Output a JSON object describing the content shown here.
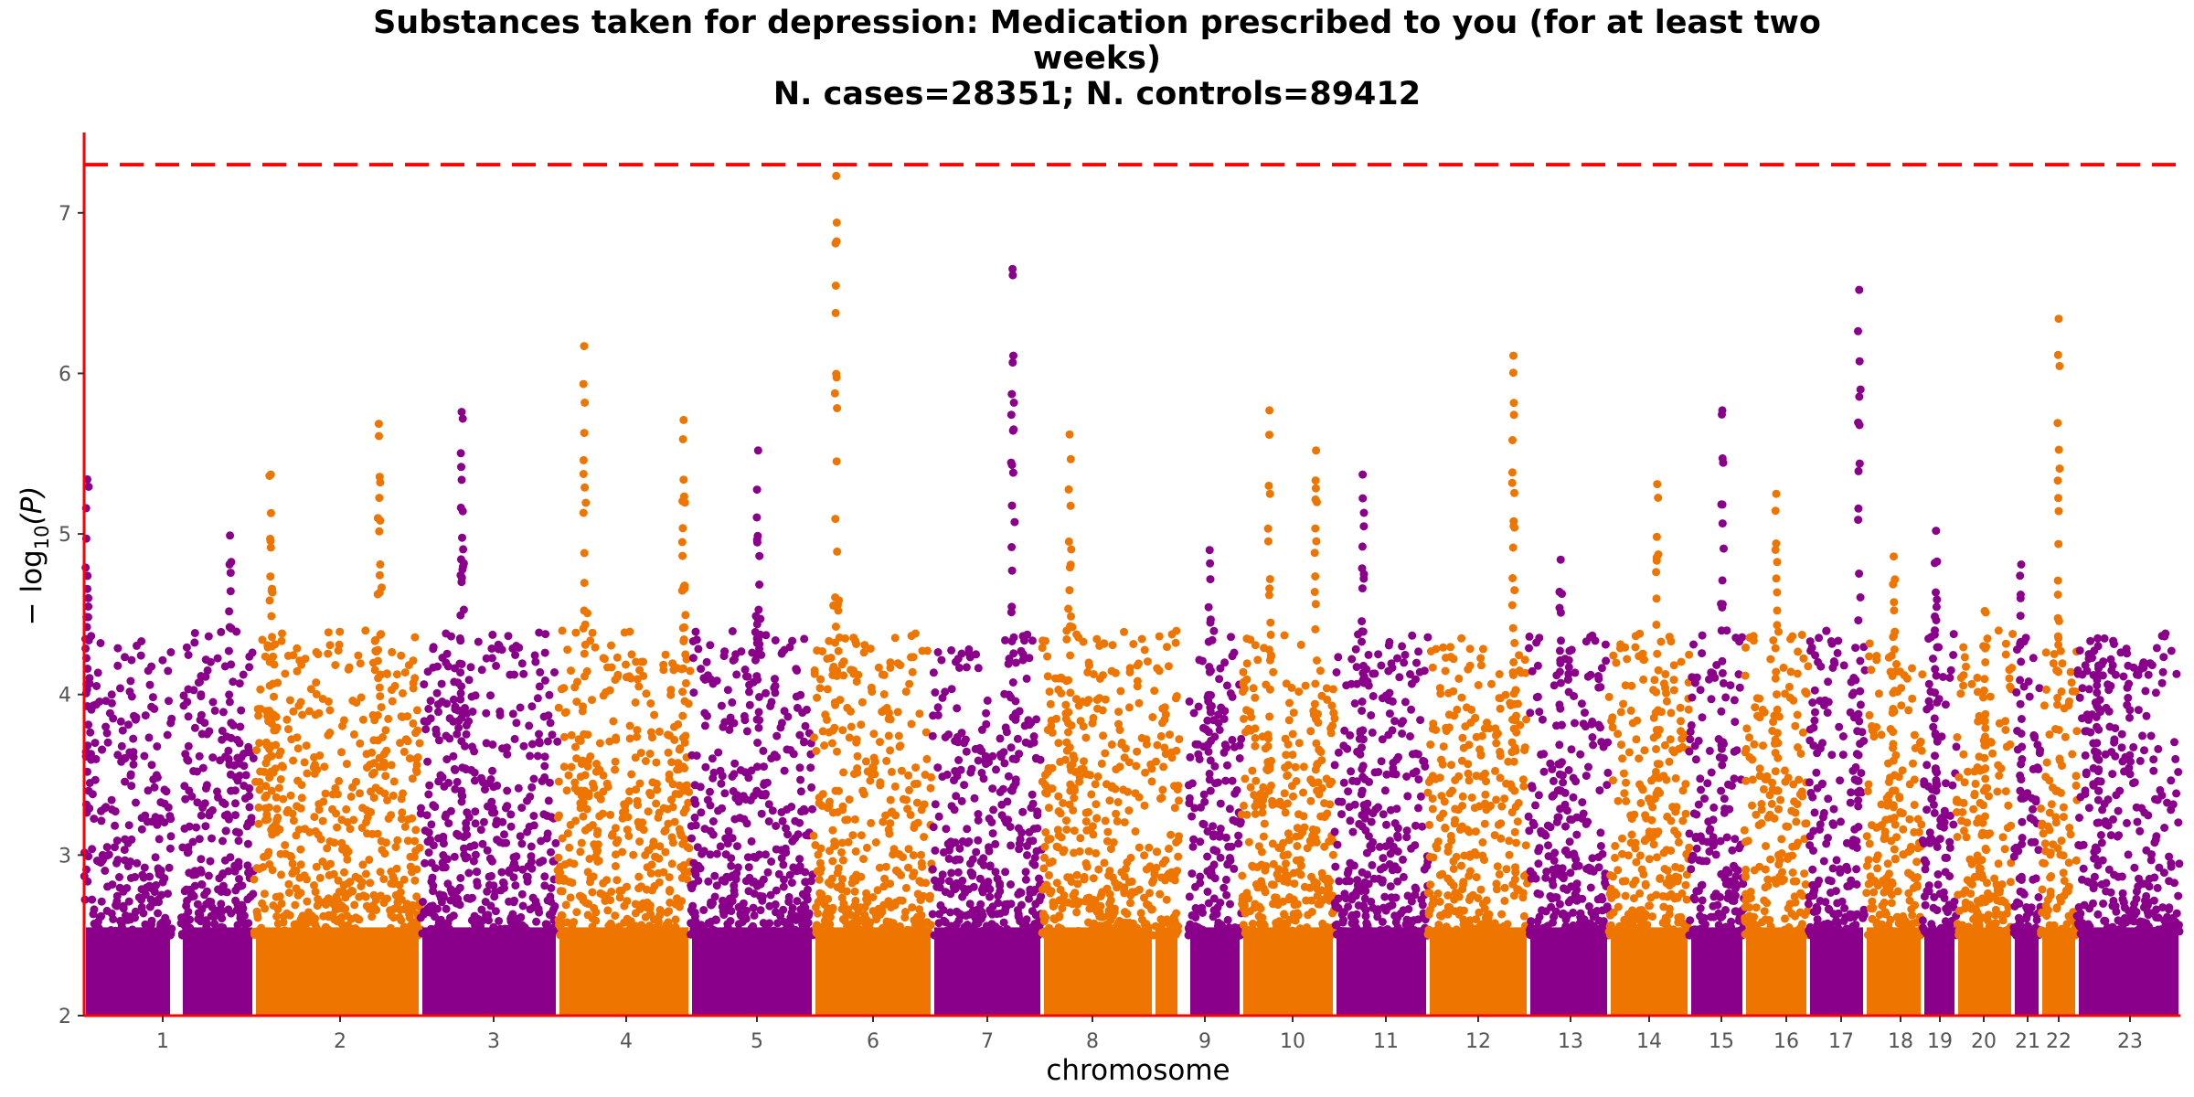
{
  "chart_data": {
    "type": "scatter",
    "subtype": "manhattan",
    "title_line1": "Substances taken for depression: Medication prescribed to you (for at least two",
    "title_line2": "weeks)",
    "title_line3": "N. cases=28351; N. controls=89412",
    "xlabel": "chromosome",
    "ylabel_main": "− log",
    "ylabel_sub": "10",
    "ylabel_tail": "(P)",
    "ylim": [
      2,
      7.5
    ],
    "y_ticks": [
      "2",
      "3",
      "4",
      "5",
      "6",
      "7"
    ],
    "significance_threshold": 7.3,
    "threshold_color": "#ff0000",
    "axis_color": "#ff0000",
    "colors": [
      "#8b008b",
      "#ee7600"
    ],
    "chromosomes": [
      {
        "label": "1",
        "color": "#8b008b",
        "peaks": [
          {
            "pos": 0.02,
            "y": 5.34
          },
          {
            "pos": 0.85,
            "y": 4.99
          }
        ]
      },
      {
        "label": "2",
        "color": "#ee7600",
        "peaks": [
          {
            "pos": 0.1,
            "y": 5.37
          },
          {
            "pos": 0.75,
            "y": 5.61
          }
        ]
      },
      {
        "label": "3",
        "color": "#8b008b",
        "peaks": [
          {
            "pos": 0.3,
            "y": 5.76
          }
        ]
      },
      {
        "label": "4",
        "color": "#ee7600",
        "peaks": [
          {
            "pos": 0.2,
            "y": 6.17
          },
          {
            "pos": 0.95,
            "y": 5.71
          }
        ]
      },
      {
        "label": "5",
        "color": "#8b008b",
        "peaks": [
          {
            "pos": 0.55,
            "y": 5.52
          }
        ]
      },
      {
        "label": "6",
        "color": "#ee7600",
        "peaks": [
          {
            "pos": 0.19,
            "y": 7.23
          }
        ]
      },
      {
        "label": "7",
        "color": "#8b008b",
        "peaks": [
          {
            "pos": 0.73,
            "y": 6.65
          }
        ]
      },
      {
        "label": "8",
        "color": "#ee7600",
        "peaks": [
          {
            "pos": 0.2,
            "y": 5.62
          }
        ]
      },
      {
        "label": "9",
        "color": "#8b008b",
        "peaks": [
          {
            "pos": 0.4,
            "y": 4.9
          }
        ]
      },
      {
        "label": "10",
        "color": "#ee7600",
        "peaks": [
          {
            "pos": 0.3,
            "y": 5.77
          },
          {
            "pos": 0.8,
            "y": 5.52
          }
        ]
      },
      {
        "label": "11",
        "color": "#8b008b",
        "peaks": [
          {
            "pos": 0.3,
            "y": 5.37
          }
        ]
      },
      {
        "label": "12",
        "color": "#ee7600",
        "peaks": [
          {
            "pos": 0.85,
            "y": 6.11
          }
        ]
      },
      {
        "label": "13",
        "color": "#8b008b",
        "peaks": [
          {
            "pos": 0.4,
            "y": 4.84
          }
        ]
      },
      {
        "label": "14",
        "color": "#ee7600",
        "peaks": [
          {
            "pos": 0.6,
            "y": 5.31
          }
        ]
      },
      {
        "label": "15",
        "color": "#8b008b",
        "peaks": [
          {
            "pos": 0.6,
            "y": 5.77
          }
        ]
      },
      {
        "label": "16",
        "color": "#ee7600",
        "peaks": [
          {
            "pos": 0.5,
            "y": 5.25
          }
        ]
      },
      {
        "label": "17",
        "color": "#8b008b",
        "peaks": [
          {
            "pos": 0.9,
            "y": 6.52
          }
        ]
      },
      {
        "label": "18",
        "color": "#ee7600",
        "peaks": [
          {
            "pos": 0.5,
            "y": 4.86
          }
        ]
      },
      {
        "label": "19",
        "color": "#8b008b",
        "peaks": [
          {
            "pos": 0.4,
            "y": 5.02
          }
        ]
      },
      {
        "label": "20",
        "color": "#ee7600",
        "peaks": [
          {
            "pos": 0.5,
            "y": 4.52
          }
        ]
      },
      {
        "label": "21",
        "color": "#8b008b",
        "peaks": [
          {
            "pos": 0.3,
            "y": 4.81
          }
        ]
      },
      {
        "label": "22",
        "color": "#ee7600",
        "peaks": [
          {
            "pos": 0.5,
            "y": 6.34
          }
        ]
      },
      {
        "label": "23",
        "color": "#8b008b",
        "peaks": [
          {
            "pos": 0.2,
            "y": 4.35
          }
        ]
      }
    ]
  }
}
